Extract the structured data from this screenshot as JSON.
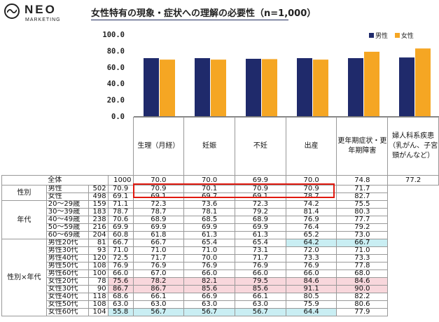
{
  "logo": {
    "brand": "NEO",
    "sub": "MARKETING"
  },
  "title": "女性特有の現象・症状への理解の必要性（n=1,000）",
  "colors": {
    "male": "#1f2a6b",
    "female": "#f5a623",
    "highlight_pink": "#f8d7dc",
    "highlight_cyan": "#c9eef3",
    "box": "#e0190f"
  },
  "chart_data": {
    "type": "bar",
    "categories": [
      "生理（月経）",
      "妊娠",
      "不妊",
      "出産",
      "更年期症状・更年期障害",
      "婦人科系疾患（乳がん、子宮頸がんなど）"
    ],
    "series": [
      {
        "name": "男性",
        "values": [
          70.9,
          70.9,
          70.1,
          70.9,
          70.9,
          71.7
        ]
      },
      {
        "name": "女性",
        "values": [
          69.1,
          69.1,
          69.7,
          69.1,
          78.7,
          82.7
        ]
      }
    ],
    "yticks": [
      "100.0",
      "80.0",
      "60.0",
      "40.0",
      "20.0",
      "0.0"
    ],
    "ylim": [
      0,
      100
    ],
    "legend": "top-right",
    "grid": false
  },
  "table": {
    "headers": [
      "生理（月経）",
      "妊娠",
      "不妊",
      "出産",
      "更年期症状・更年期障害",
      "婦人科系疾患（乳がん、子宮頸がんなど）"
    ],
    "rows": [
      {
        "group": "全体",
        "label": "",
        "n": "1000",
        "values": [
          "70.0",
          "70.0",
          "69.9",
          "70.0",
          "74.8",
          "77.2"
        ]
      },
      {
        "group": "性別",
        "label": "男性",
        "n": "502",
        "values": [
          "70.9",
          "70.9",
          "70.1",
          "70.9",
          "70.9",
          "71.7"
        ]
      },
      {
        "group": "",
        "label": "女性",
        "n": "498",
        "values": [
          "69.1",
          "69.1",
          "69.7",
          "69.1",
          "78.7",
          "82.7"
        ]
      },
      {
        "group": "年代",
        "label": "20～29歳",
        "n": "159",
        "values": [
          "71.1",
          "72.3",
          "73.6",
          "72.3",
          "74.2",
          "75.5"
        ]
      },
      {
        "group": "",
        "label": "30～39歳",
        "n": "183",
        "values": [
          "78.7",
          "78.7",
          "78.1",
          "79.2",
          "81.4",
          "80.3"
        ]
      },
      {
        "group": "",
        "label": "40～49歳",
        "n": "238",
        "values": [
          "70.6",
          "68.9",
          "68.5",
          "68.9",
          "76.9",
          "77.7"
        ]
      },
      {
        "group": "",
        "label": "50～59歳",
        "n": "216",
        "values": [
          "69.9",
          "69.9",
          "69.9",
          "69.9",
          "76.4",
          "79.2"
        ]
      },
      {
        "group": "",
        "label": "60～69歳",
        "n": "204",
        "values": [
          "60.8",
          "61.8",
          "61.3",
          "61.3",
          "65.2",
          "73.0"
        ]
      },
      {
        "group": "性別×年代",
        "label": "男性20代",
        "n": "81",
        "values": [
          "66.7",
          "66.7",
          "65.4",
          "65.4",
          "64.2",
          "66.7"
        ]
      },
      {
        "group": "",
        "label": "男性30代",
        "n": "93",
        "values": [
          "71.0",
          "71.0",
          "71.0",
          "73.1",
          "72.0",
          "71.0"
        ]
      },
      {
        "group": "",
        "label": "男性40代",
        "n": "120",
        "values": [
          "72.5",
          "71.7",
          "70.0",
          "71.7",
          "73.3",
          "73.3"
        ]
      },
      {
        "group": "",
        "label": "男性50代",
        "n": "108",
        "values": [
          "76.9",
          "76.9",
          "76.9",
          "76.9",
          "76.9",
          "77.8"
        ]
      },
      {
        "group": "",
        "label": "男性60代",
        "n": "100",
        "values": [
          "66.0",
          "67.0",
          "66.0",
          "66.0",
          "66.0",
          "68.0"
        ]
      },
      {
        "group": "",
        "label": "女性20代",
        "n": "78",
        "values": [
          "75.6",
          "78.2",
          "82.1",
          "79.5",
          "84.6",
          "84.6"
        ]
      },
      {
        "group": "",
        "label": "女性30代",
        "n": "90",
        "values": [
          "86.7",
          "86.7",
          "85.6",
          "85.6",
          "91.1",
          "90.0"
        ]
      },
      {
        "group": "",
        "label": "女性40代",
        "n": "118",
        "values": [
          "68.6",
          "66.1",
          "66.9",
          "66.1",
          "80.5",
          "82.2"
        ]
      },
      {
        "group": "",
        "label": "女性50代",
        "n": "108",
        "values": [
          "63.0",
          "63.0",
          "63.0",
          "63.0",
          "75.9",
          "80.6"
        ]
      },
      {
        "group": "",
        "label": "女性60代",
        "n": "104",
        "values": [
          "55.8",
          "56.7",
          "56.7",
          "56.7",
          "64.4",
          "77.9"
        ]
      }
    ]
  }
}
